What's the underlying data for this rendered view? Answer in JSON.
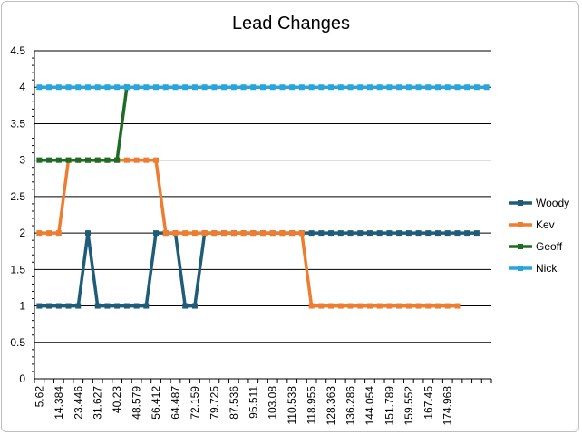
{
  "chart_data": {
    "type": "line",
    "title": "Lead Changes",
    "xlabel": "",
    "ylabel": "",
    "ylim": [
      0,
      4.5
    ],
    "yticks": [
      "0",
      "0.5",
      "1",
      "1.5",
      "2",
      "2.5",
      "3",
      "3.5",
      "4",
      "4.5"
    ],
    "grid": "horizontal",
    "legend_position": "right",
    "x_tick_labels": [
      "5.62",
      "14.384",
      "23.446",
      "31.627",
      "40.23",
      "48.579",
      "56.412",
      "64.487",
      "72.159",
      "79.725",
      "87.536",
      "95.511",
      "103.08",
      "110.538",
      "118.955",
      "128.363",
      "136.286",
      "144.054",
      "151.789",
      "159.552",
      "167.45",
      "174.968"
    ],
    "series": [
      {
        "name": "Woody",
        "color": "#1f5c7a",
        "values": [
          1,
          1,
          1,
          1,
          1,
          2,
          1,
          1,
          1,
          1,
          1,
          1,
          2,
          2,
          2,
          1,
          1,
          2,
          2,
          2,
          2,
          2,
          2,
          2,
          2,
          2,
          2,
          2,
          2,
          2,
          2,
          2,
          2,
          2,
          2,
          2,
          2,
          2,
          2,
          2,
          2,
          2,
          2,
          2,
          2,
          2
        ]
      },
      {
        "name": "Kev",
        "color": "#ed7d31",
        "values": [
          2,
          2,
          2,
          3,
          3,
          3,
          3,
          3,
          3,
          3,
          3,
          3,
          3,
          2,
          2,
          2,
          2,
          2,
          2,
          2,
          2,
          2,
          2,
          2,
          2,
          2,
          2,
          2,
          1,
          1,
          1,
          1,
          1,
          1,
          1,
          1,
          1,
          1,
          1,
          1,
          1,
          1,
          1,
          1
        ]
      },
      {
        "name": "Geoff",
        "color": "#1e6b24",
        "values": [
          3,
          3,
          3,
          3,
          3,
          3,
          3,
          3,
          3,
          4
        ]
      },
      {
        "name": "Nick",
        "color": "#2aa5dc",
        "values": [
          4,
          4,
          4,
          4,
          4,
          4,
          4,
          4,
          4,
          4,
          4,
          4,
          4,
          4,
          4,
          4,
          4,
          4,
          4,
          4,
          4,
          4,
          4,
          4,
          4,
          4,
          4,
          4,
          4,
          4,
          4,
          4,
          4,
          4,
          4,
          4,
          4,
          4,
          4,
          4,
          4,
          4,
          4,
          4,
          4,
          4,
          4
        ]
      }
    ]
  }
}
